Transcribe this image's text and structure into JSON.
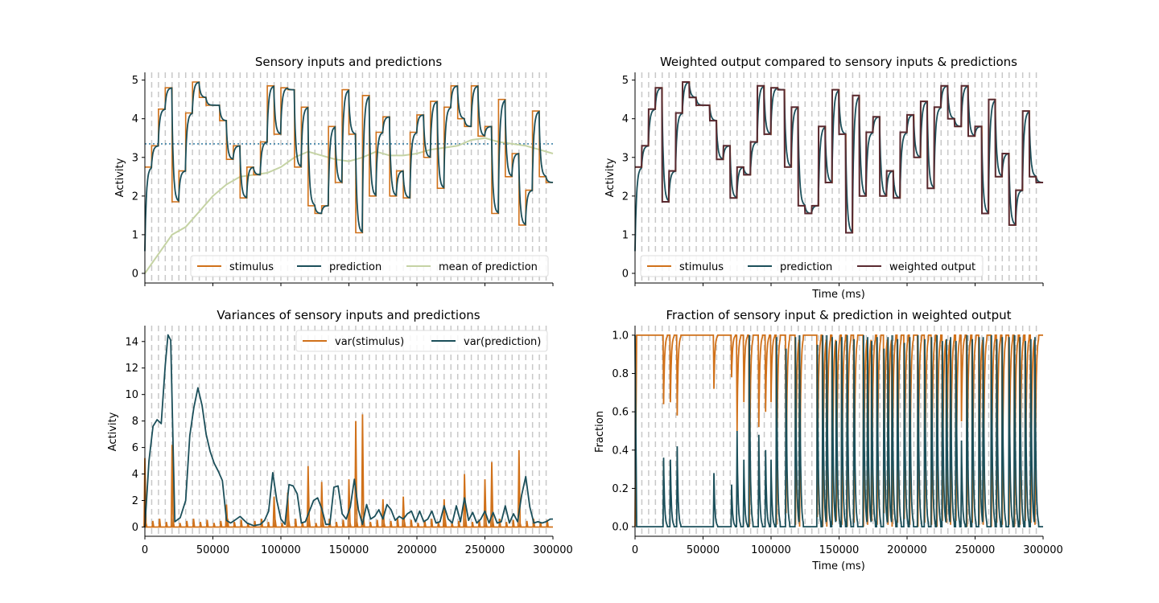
{
  "colors": {
    "stimulus": "#d0711a",
    "prediction": "#1b4f5a",
    "mean_prediction": "#c5d3a4",
    "weighted_output": "#5a2a30",
    "guide": "#c8c8c8",
    "mean_line": "#1f6f9a"
  },
  "chart_data": [
    {
      "type": "line",
      "title": "Sensory inputs and predictions",
      "xlabel": "",
      "ylabel": "Activity",
      "xlim": [
        0,
        300000
      ],
      "ylim": [
        -0.25,
        5.2
      ],
      "yticks": [
        0,
        1,
        2,
        3,
        4,
        5
      ],
      "xtick_labels_shown": false,
      "hline": 3.35,
      "legend": [
        "stimulus",
        "prediction",
        "mean of prediction"
      ],
      "legend_position": "lower-right",
      "series": [
        {
          "name": "stimulus",
          "kind": "step_from_shared"
        },
        {
          "name": "prediction",
          "kind": "lag_from_shared"
        },
        {
          "name": "mean of prediction",
          "x": [
            0,
            10000,
            20000,
            30000,
            40000,
            50000,
            60000,
            70000,
            80000,
            90000,
            100000,
            110000,
            120000,
            130000,
            140000,
            150000,
            160000,
            170000,
            180000,
            190000,
            200000,
            210000,
            220000,
            230000,
            240000,
            250000,
            260000,
            270000,
            280000,
            290000,
            300000
          ],
          "values": [
            0,
            0.5,
            1.0,
            1.2,
            1.6,
            2.0,
            2.3,
            2.5,
            2.55,
            2.6,
            2.75,
            3.0,
            3.15,
            3.05,
            2.95,
            2.9,
            3.0,
            3.15,
            3.05,
            3.05,
            3.1,
            3.2,
            3.25,
            3.3,
            3.45,
            3.5,
            3.4,
            3.35,
            3.3,
            3.2,
            3.1
          ]
        }
      ]
    },
    {
      "type": "line",
      "title": "Weighted output compared to sensory inputs & predictions",
      "xlabel": "Time (ms)",
      "ylabel": "Activity",
      "xlim": [
        0,
        300000
      ],
      "ylim": [
        -0.25,
        5.2
      ],
      "yticks": [
        0,
        1,
        2,
        3,
        4,
        5
      ],
      "xtick_labels_shown": false,
      "legend": [
        "stimulus",
        "prediction",
        "weighted output"
      ],
      "legend_position": "lower-left",
      "series": [
        {
          "name": "stimulus",
          "kind": "step_from_shared"
        },
        {
          "name": "prediction",
          "kind": "lag_from_shared"
        },
        {
          "name": "weighted output",
          "kind": "near_stimulus"
        }
      ]
    },
    {
      "type": "line",
      "title": "Variances of sensory inputs and predictions",
      "xlabel": "",
      "ylabel": "Activity",
      "xlim": [
        0,
        300000
      ],
      "ylim": [
        -0.7,
        15.2
      ],
      "yticks": [
        0,
        2,
        4,
        6,
        8,
        10,
        12,
        14
      ],
      "xticks": [
        0,
        50000,
        100000,
        150000,
        200000,
        250000,
        300000
      ],
      "legend": [
        "var(stimulus)",
        "var(prediction)"
      ],
      "legend_position": "top-right",
      "series": [
        {
          "name": "var(stimulus)",
          "x": [
            0,
            20000,
            60000,
            95000,
            105000,
            120000,
            130000,
            150000,
            155000,
            160000,
            175000,
            190000,
            220000,
            235000,
            250000,
            255000,
            275000
          ],
          "values": [
            5.2,
            6.2,
            1.7,
            2.3,
            2.6,
            4.6,
            3.4,
            3.6,
            8.0,
            8.5,
            2.1,
            2.3,
            2.1,
            4.0,
            3.6,
            4.9,
            5.8
          ]
        },
        {
          "name": "var(prediction)",
          "x": [
            0,
            3000,
            6000,
            9000,
            12000,
            15000,
            17000,
            19000,
            22000,
            26000,
            30000,
            33000,
            36000,
            39000,
            42000,
            45000,
            48000,
            51000,
            54000,
            57000,
            60000,
            63000,
            66000,
            70000,
            75000,
            80000,
            85000,
            88000,
            91000,
            94000,
            97000,
            100000,
            103000,
            106000,
            109000,
            112000,
            115000,
            118000,
            121000,
            124000,
            127000,
            130000,
            133000,
            136000,
            139000,
            142000,
            145000,
            148000,
            151000,
            154000,
            157000,
            160000,
            163000,
            166000,
            169000,
            172000,
            175000,
            178000,
            181000,
            184000,
            187000,
            190000,
            193000,
            196000,
            199000,
            202000,
            205000,
            208000,
            211000,
            214000,
            217000,
            220000,
            223000,
            226000,
            229000,
            232000,
            235000,
            238000,
            241000,
            244000,
            247000,
            250000,
            253000,
            256000,
            259000,
            262000,
            265000,
            268000,
            271000,
            274000,
            277000,
            280000,
            283000,
            286000,
            289000,
            292000,
            295000,
            298000,
            300000
          ],
          "values": [
            0,
            5.0,
            7.6,
            8.1,
            7.8,
            12.2,
            14.5,
            14.1,
            0.4,
            0.7,
            2.0,
            6.9,
            9.0,
            10.5,
            9.2,
            7.0,
            5.7,
            4.8,
            4.2,
            3.5,
            0.5,
            0.3,
            0.5,
            0.8,
            0.3,
            0.1,
            0.2,
            0.5,
            1.2,
            4.1,
            2.0,
            0.6,
            0.2,
            3.2,
            3.1,
            2.5,
            0.3,
            0.4,
            1.2,
            2.0,
            2.2,
            1.4,
            0.2,
            0.2,
            3.0,
            3.1,
            1.0,
            0.6,
            1.5,
            3.6,
            1.3,
            0.2,
            1.7,
            0.6,
            0.8,
            1.3,
            0.6,
            1.7,
            1.3,
            0.5,
            0.8,
            0.6,
            1.0,
            1.2,
            0.4,
            1.2,
            0.4,
            0.6,
            1.2,
            0.3,
            0.4,
            1.6,
            0.6,
            0.3,
            1.6,
            0.4,
            2.2,
            0.5,
            1.1,
            0.3,
            0.6,
            1.2,
            0.3,
            1.1,
            0.3,
            0.4,
            1.6,
            0.3,
            1.0,
            0.4,
            2.4,
            3.8,
            1.5,
            0.3,
            0.4,
            0.3,
            0.4,
            0.6,
            0.6
          ]
        }
      ]
    },
    {
      "type": "line",
      "title": "Fraction of sensory input & prediction in weighted output",
      "xlabel": "Time (ms)",
      "ylabel": "Fraction",
      "xlim": [
        0,
        300000
      ],
      "ylim": [
        -0.05,
        1.05
      ],
      "yticks": [
        0.0,
        0.2,
        0.4,
        0.6,
        0.8,
        1.0
      ],
      "xticks": [
        0,
        50000,
        100000,
        150000,
        200000,
        250000,
        300000
      ],
      "series": [
        {
          "name": "stimulus",
          "kind": "complement_of_prediction_fraction"
        },
        {
          "name": "prediction",
          "kind": "dips_from_events"
        }
      ]
    }
  ],
  "shared": {
    "segment_ms": 5000,
    "stimulus_levels": [
      2.75,
      3.3,
      4.25,
      4.8,
      1.85,
      2.65,
      4.15,
      4.95,
      4.55,
      4.35,
      4.35,
      3.95,
      2.95,
      3.3,
      1.95,
      2.75,
      2.55,
      3.4,
      4.85,
      3.6,
      4.8,
      4.75,
      2.75,
      4.3,
      1.75,
      1.55,
      1.75,
      3.8,
      2.35,
      4.75,
      3.6,
      1.05,
      4.6,
      2.0,
      3.65,
      4.05,
      2.0,
      2.65,
      1.95,
      3.65,
      4.1,
      3.0,
      4.45,
      2.2,
      4.3,
      4.85,
      4.0,
      3.8,
      4.85,
      3.55,
      3.8,
      1.55,
      4.5,
      2.5,
      3.1,
      1.25,
      2.15,
      4.2,
      2.5,
      2.35
    ],
    "prediction_events_ms": [
      21000,
      26000,
      31000,
      58000,
      71000,
      75000,
      80000,
      84000,
      91000,
      96000,
      100000,
      104000,
      111000,
      118000,
      121000,
      134000,
      138000,
      141000,
      145000,
      148000,
      152000,
      156000,
      161000,
      168000,
      171000,
      174000,
      178000,
      183000,
      186000,
      189000,
      193000,
      198000,
      202000,
      208000,
      213000,
      218000,
      222000,
      226000,
      229000,
      232000,
      236000,
      240000,
      244000,
      248000,
      253000,
      256000,
      262000,
      266000,
      270000,
      275000,
      279000,
      283000,
      287000,
      291000,
      294000
    ],
    "prediction_event_peaks": [
      0.36,
      0.35,
      0.42,
      0.28,
      0.22,
      0.5,
      0.35,
      1.0,
      0.48,
      0.4,
      0.35,
      0.99,
      0.93,
      0.99,
      1.0,
      0.95,
      1.0,
      1.0,
      0.99,
      0.97,
      0.99,
      1.0,
      0.98,
      1.0,
      0.99,
      0.97,
      0.99,
      0.93,
      0.99,
      1.0,
      0.98,
      0.96,
      0.99,
      1.0,
      0.98,
      0.99,
      1.0,
      0.97,
      0.98,
      0.99,
      0.97,
      0.45,
      1.0,
      0.98,
      0.99,
      0.99,
      1.0,
      0.98,
      0.99,
      0.99,
      1.0,
      0.99,
      0.97,
      0.98,
      0.99
    ]
  },
  "guides": {
    "spacing_ms": 5000
  },
  "tick_format": [
    "0",
    "50000",
    "100000",
    "150000",
    "200000",
    "250000",
    "300000"
  ]
}
